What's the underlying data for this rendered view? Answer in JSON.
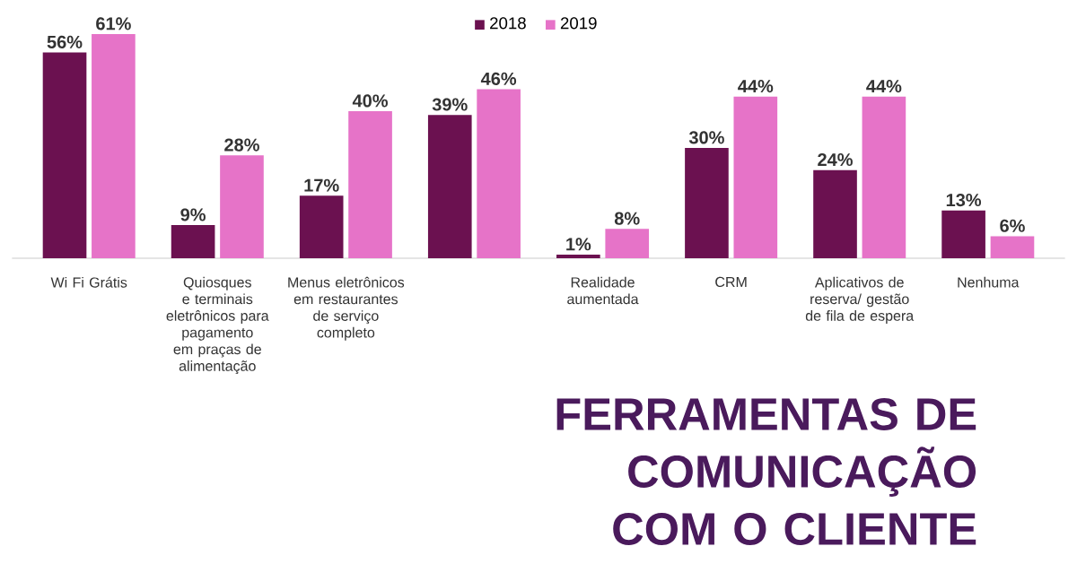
{
  "chart_data": {
    "type": "bar",
    "title": "FERRAMENTAS DE COMUNICAÇÃO COM O CLIENTE",
    "categories": [
      "Wi Fi Grátis",
      "Quiosques e terminais eletrônicos para pagamento em praças de alimentação",
      "Menus eletrônicos em restaurantes de serviço completo",
      null,
      "Realidade aumentada",
      "CRM",
      "Aplicativos de reserva/ gestão de fila de espera",
      "Nenhuma"
    ],
    "series": [
      {
        "name": "2018",
        "color": "#6b1150",
        "values": [
          56,
          9,
          17,
          39,
          1,
          30,
          24,
          13
        ],
        "value_labels": [
          "56%",
          "9%",
          "17%",
          "39%",
          "1%",
          "30%",
          "24%",
          "13%"
        ]
      },
      {
        "name": "2019",
        "color": "#e673c8",
        "values": [
          61,
          28,
          40,
          46,
          8,
          44,
          44,
          6
        ],
        "value_labels": [
          "61%",
          "28%",
          "40%",
          "46%",
          "8%",
          "44%",
          "44%",
          "6%"
        ]
      }
    ],
    "legend": "top"
  }
}
